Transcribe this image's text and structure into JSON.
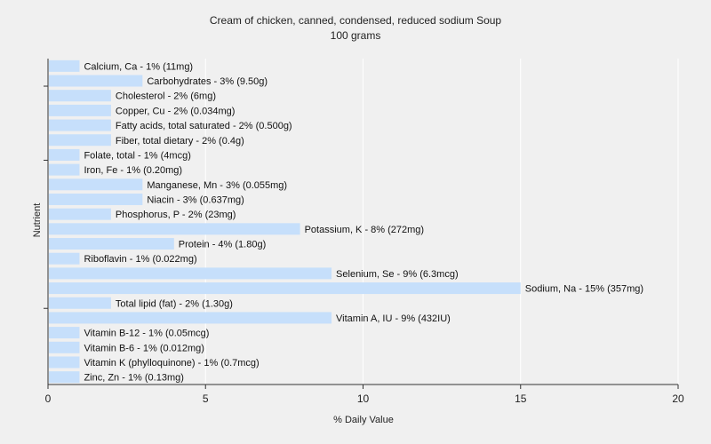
{
  "chart_data": {
    "type": "bar",
    "orientation": "horizontal",
    "title": "Cream of chicken, canned, condensed, reduced sodium Soup",
    "subtitle": "100 grams",
    "xlabel": "% Daily Value",
    "ylabel": "Nutrient",
    "xlim": [
      0,
      20
    ],
    "xticks": [
      "0",
      "5",
      "10",
      "15",
      "20"
    ],
    "grid": true,
    "bar_color": "#c6dffb",
    "categories": [
      "Calcium, Ca",
      "Carbohydrates",
      "Cholesterol",
      "Copper, Cu",
      "Fatty acids, total saturated",
      "Fiber, total dietary",
      "Folate, total",
      "Iron, Fe",
      "Manganese, Mn",
      "Niacin",
      "Phosphorus, P",
      "Potassium, K",
      "Protein",
      "Riboflavin",
      "Selenium, Se",
      "Sodium, Na",
      "Total lipid (fat)",
      "Vitamin A, IU",
      "Vitamin B-12",
      "Vitamin B-6",
      "Vitamin K (phylloquinone)",
      "Zinc, Zn"
    ],
    "values": [
      1,
      3,
      2,
      2,
      2,
      2,
      1,
      1,
      3,
      3,
      2,
      8,
      4,
      1,
      9,
      15,
      2,
      9,
      1,
      1,
      1,
      1
    ],
    "labels": [
      "Calcium, Ca - 1% (11mg)",
      "Carbohydrates - 3% (9.50g)",
      "Cholesterol - 2% (6mg)",
      "Copper, Cu - 2% (0.034mg)",
      "Fatty acids, total saturated - 2% (0.500g)",
      "Fiber, total dietary - 2% (0.4g)",
      "Folate, total - 1% (4mcg)",
      "Iron, Fe - 1% (0.20mg)",
      "Manganese, Mn - 3% (0.055mg)",
      "Niacin - 3% (0.637mg)",
      "Phosphorus, P - 2% (23mg)",
      "Potassium, K - 8% (272mg)",
      "Protein - 4% (1.80g)",
      "Riboflavin - 1% (0.022mg)",
      "Selenium, Se - 9% (6.3mcg)",
      "Sodium, Na - 15% (357mg)",
      "Total lipid (fat) - 2% (1.30g)",
      "Vitamin A, IU - 9% (432IU)",
      "Vitamin B-12 - 1% (0.05mcg)",
      "Vitamin B-6 - 1% (0.012mg)",
      "Vitamin K (phylloquinone) - 1% (0.7mcg)",
      "Zinc, Zn - 1% (0.13mg)"
    ]
  }
}
